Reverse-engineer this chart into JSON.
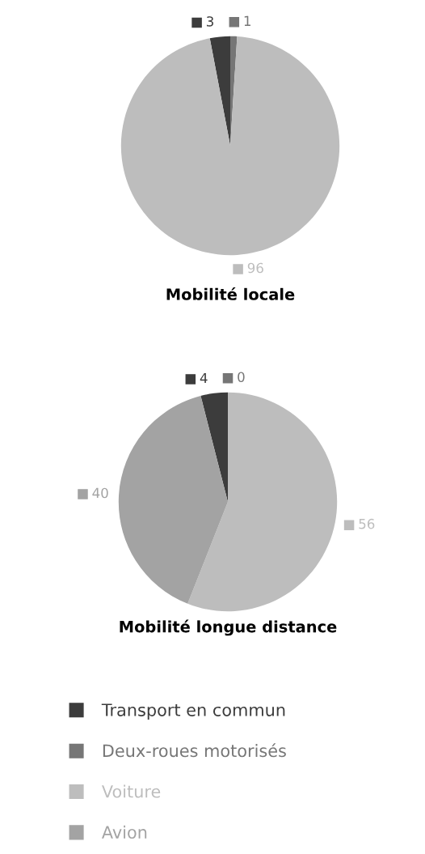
{
  "chart_data": [
    {
      "type": "pie",
      "title": "Mobilité locale",
      "categories": [
        "Transport en commun",
        "Deux-roues motorisés",
        "Voiture",
        "Avion"
      ],
      "values": [
        3,
        1,
        96,
        0
      ],
      "value_labels": [
        "3",
        "1",
        "96",
        null
      ],
      "colors": [
        "#3c3c3c",
        "#767676",
        "#bdbdbd",
        "#a3a3a3"
      ],
      "legend": "bottom"
    },
    {
      "type": "pie",
      "title": "Mobilité longue distance",
      "categories": [
        null,
        null,
        null,
        null
      ],
      "values": [
        4,
        0,
        56,
        40
      ],
      "value_labels": [
        "4",
        "0",
        "56",
        "40"
      ],
      "colors": [
        "#3c3c3c",
        "#767676",
        "#bdbdbd",
        "#a3a3a3"
      ]
    }
  ]
}
